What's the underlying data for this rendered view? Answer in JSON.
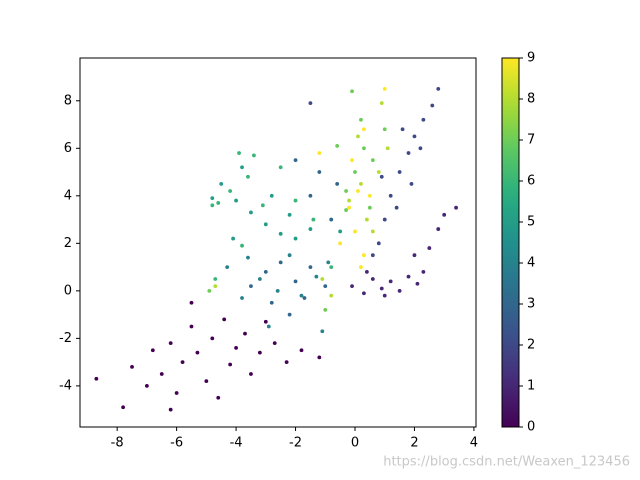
{
  "chart_data": {
    "type": "scatter",
    "x": [
      -8.7,
      -7.8,
      -7.5,
      -7,
      -6.8,
      -6.5,
      -6.2,
      -6,
      -5.8,
      -5.5,
      -5.3,
      -5,
      -4.8,
      -4.6,
      -4.4,
      -4.2,
      -4,
      -3.7,
      -3.5,
      -3.2,
      -3,
      -2.7,
      -2.3,
      -1.8,
      -1.2,
      -5.5,
      -6.2,
      -0.1,
      0.3,
      0.6,
      0.9,
      1.2,
      1.5,
      1.8,
      2.1,
      2.3,
      2.5,
      2.8,
      3,
      3.4,
      2,
      1,
      0.4,
      0.8,
      1,
      1.2,
      1.5,
      1.8,
      2,
      2.3,
      2.6,
      2.8,
      1.4,
      0.6,
      1.9,
      2.2,
      0.9,
      1.6,
      -1.5,
      -3.5,
      -3,
      -2.5,
      -2,
      -1.5,
      -1,
      -2.8,
      -2.2,
      -1.7,
      -0.8,
      -1.2,
      -1.5,
      -0.6,
      -2,
      -3.8,
      -3.2,
      -2.6,
      -2.2,
      -1.8,
      -1.3,
      -2.9,
      -1.1,
      -4.3,
      -3.6,
      -0.9,
      -4.5,
      -4,
      -3.5,
      -3,
      -2.5,
      -2,
      -1.5,
      -3.8,
      -2.8,
      -2.2,
      -4.8,
      -4.1,
      -0.5,
      -4.2,
      -3.6,
      -3.1,
      -2.5,
      -3.4,
      -2,
      -4.6,
      -4.8,
      -3.8,
      -4.7,
      -0.8,
      -1.4,
      -3.9,
      0,
      0.3,
      -0.3,
      0.6,
      -0.6,
      0.2,
      1,
      -0.1,
      0.5,
      -1,
      -4.9,
      -0.3,
      0.2,
      0.8,
      0.4,
      -0.2,
      0.9,
      0.6,
      -0.8,
      -1.1,
      -4.7,
      1.1,
      0.1,
      0,
      0.3,
      -0.2,
      0.1,
      -0.1,
      0.2,
      1,
      0.3,
      -1.2,
      -0.5,
      0.5
    ],
    "y": [
      -3.7,
      -4.9,
      -3.2,
      -4,
      -2.5,
      -3.5,
      -2.2,
      -4.3,
      -3,
      -1.5,
      -2.6,
      -3.8,
      -2,
      -4.5,
      -1.2,
      -3.1,
      -2.4,
      -1.8,
      -3.5,
      -2.6,
      -1.3,
      -2.2,
      -3,
      -2.5,
      -2.8,
      -0.5,
      -5.0,
      0.2,
      -0.1,
      0.5,
      0.1,
      0.4,
      0,
      0.6,
      0.3,
      0.8,
      1.8,
      2.6,
      3.2,
      3.5,
      1.5,
      -0.2,
      0.8,
      2,
      3,
      4,
      5,
      5.8,
      6.5,
      7.2,
      7.8,
      8.5,
      3.5,
      1.5,
      4.5,
      6,
      4.8,
      6.8,
      7.9,
      0.2,
      0.8,
      1.2,
      0.4,
      1,
      0.2,
      -0.5,
      -1,
      -0.3,
      3,
      5,
      4,
      4.5,
      5.5,
      -0.3,
      0.5,
      0,
      1.5,
      -0.2,
      0.6,
      -1.5,
      -1.7,
      1,
      1.4,
      1.2,
      4.5,
      3.8,
      3.3,
      2.8,
      2.4,
      2.2,
      2.6,
      5.2,
      4,
      3.2,
      3.9,
      2.2,
      2.5,
      4.2,
      4.8,
      3.6,
      5.2,
      5.7,
      3.8,
      3.7,
      3.6,
      1.9,
      0.5,
      1,
      3,
      5.8,
      5,
      6,
      4.2,
      5.5,
      6.1,
      7.2,
      6.8,
      8.4,
      3.5,
      -0.8,
      0,
      3.4,
      4.5,
      5,
      3,
      3.8,
      7.9,
      2.5,
      -0.2,
      0.5,
      0.2,
      6,
      6.5,
      2.5,
      1.5,
      3.5,
      4.2,
      5.5,
      1,
      8.5,
      6.8,
      5.8,
      2,
      4
    ],
    "values": [
      0,
      0,
      0,
      0,
      0,
      0,
      0,
      0,
      0,
      0,
      0,
      0,
      0,
      0,
      0,
      0,
      0,
      0,
      0,
      0,
      0,
      0,
      0,
      0,
      0,
      0,
      0,
      1,
      1,
      1,
      1,
      1,
      1,
      1,
      1,
      1,
      1,
      1,
      1,
      1,
      1,
      1,
      1,
      2,
      2,
      2,
      2,
      2,
      2,
      2,
      2,
      2,
      2,
      2,
      2,
      2,
      2,
      2,
      2,
      3,
      3,
      3,
      3,
      3,
      3,
      3,
      3,
      3,
      3,
      3,
      3,
      3,
      3,
      4,
      4,
      4,
      4,
      4,
      4,
      4,
      4,
      4,
      4,
      4,
      5,
      5,
      5,
      5,
      5,
      5,
      5,
      5,
      5,
      5,
      5,
      5,
      5,
      6,
      6,
      6,
      6,
      6,
      6,
      6,
      6,
      6,
      6,
      6,
      6,
      6,
      7,
      7,
      7,
      7,
      7,
      7,
      7,
      7,
      7,
      7,
      7,
      7,
      8,
      8,
      8,
      8,
      8,
      8,
      8,
      8,
      8,
      8,
      8,
      9,
      9,
      9,
      9,
      9,
      9,
      9,
      9,
      9,
      9,
      9
    ],
    "cmap": "viridis",
    "clim": [
      0,
      9
    ],
    "cticks": [
      0,
      1,
      2,
      3,
      4,
      5,
      6,
      7,
      8,
      9
    ],
    "xlim": [
      -9.25,
      4.07
    ],
    "ylim": [
      -5.73,
      9.8
    ],
    "xticks": [
      -8,
      -6,
      -4,
      -2,
      0,
      2,
      4
    ],
    "yticks": [
      -4,
      -2,
      0,
      2,
      4,
      6,
      8
    ],
    "watermark": "https://blog.csdn.net/Weaxen_123456"
  }
}
